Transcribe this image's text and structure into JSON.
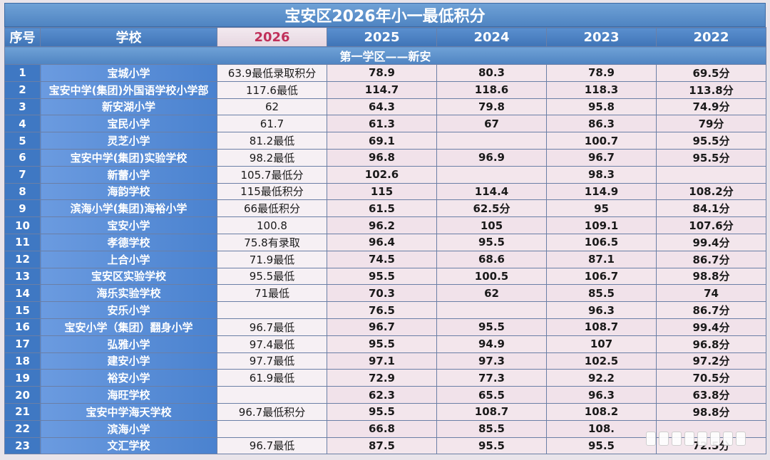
{
  "title": "宝安区2026年小一最低积分",
  "columns": [
    "序号",
    "学校",
    "2026",
    "2025",
    "2024",
    "2023",
    "2022"
  ],
  "zone": "第一学区——新安",
  "rows": [
    {
      "no": "1",
      "school": "宝城小学",
      "y2026": "63.9最低录取积分",
      "y2025": "78.9",
      "y2024": "80.3",
      "y2023": "78.9",
      "y2022": "69.5分"
    },
    {
      "no": "2",
      "school": "宝安中学(集团)外国语学校小学部",
      "y2026": "117.6最低",
      "y2025": "114.7",
      "y2024": "118.6",
      "y2023": "118.3",
      "y2022": "113.8分"
    },
    {
      "no": "3",
      "school": "新安湖小学",
      "y2026": "62",
      "y2025": "64.3",
      "y2024": "79.8",
      "y2023": "95.8",
      "y2022": "74.9分"
    },
    {
      "no": "4",
      "school": "宝民小学",
      "y2026": "61.7",
      "y2025": "61.3",
      "y2024": "67",
      "y2023": "86.3",
      "y2022": "79分"
    },
    {
      "no": "5",
      "school": "灵芝小学",
      "y2026": "81.2最低",
      "y2025": "69.1",
      "y2024": "",
      "y2023": "100.7",
      "y2022": "95.5分"
    },
    {
      "no": "6",
      "school": "宝安中学(集团)实验学校",
      "y2026": "98.2最低",
      "y2025": "96.8",
      "y2024": "96.9",
      "y2023": "96.7",
      "y2022": "95.5分"
    },
    {
      "no": "7",
      "school": "新蕾小学",
      "y2026": "105.7最低分",
      "y2025": "102.6",
      "y2024": "",
      "y2023": "98.3",
      "y2022": ""
    },
    {
      "no": "8",
      "school": "海韵学校",
      "y2026": "115最低积分",
      "y2025": "115",
      "y2024": "114.4",
      "y2023": "114.9",
      "y2022": "108.2分"
    },
    {
      "no": "9",
      "school": "滨海小学(集团)海裕小学",
      "y2026": "66最低积分",
      "y2025": "61.5",
      "y2024": "62.5分",
      "y2023": "95",
      "y2022": "84.1分"
    },
    {
      "no": "10",
      "school": "宝安小学",
      "y2026": "100.8",
      "y2025": "96.2",
      "y2024": "105",
      "y2023": "109.1",
      "y2022": "107.6分"
    },
    {
      "no": "11",
      "school": "孝德学校",
      "y2026": "75.8有录取",
      "y2025": "96.4",
      "y2024": "95.5",
      "y2023": "106.5",
      "y2022": "99.4分"
    },
    {
      "no": "12",
      "school": "上合小学",
      "y2026": "71.9最低",
      "y2025": "74.5",
      "y2024": "68.6",
      "y2023": "87.1",
      "y2022": "86.7分"
    },
    {
      "no": "13",
      "school": "宝安区实验学校",
      "y2026": "95.5最低",
      "y2025": "95.5",
      "y2024": "100.5",
      "y2023": "106.7",
      "y2022": "98.8分"
    },
    {
      "no": "14",
      "school": "海乐实验学校",
      "y2026": "71最低",
      "y2025": "70.3",
      "y2024": "62",
      "y2023": "85.5",
      "y2022": "74"
    },
    {
      "no": "15",
      "school": "安乐小学",
      "y2026": "",
      "y2025": "76.5",
      "y2024": "",
      "y2023": "96.3",
      "y2022": "86.7分"
    },
    {
      "no": "16",
      "school": "宝安小学（集团）翻身小学",
      "y2026": "96.7最低",
      "y2025": "96.7",
      "y2024": "95.5",
      "y2023": "108.7",
      "y2022": "99.4分"
    },
    {
      "no": "17",
      "school": "弘雅小学",
      "y2026": "97.4最低",
      "y2025": "95.5",
      "y2024": "94.9",
      "y2023": "107",
      "y2022": "96.8分"
    },
    {
      "no": "18",
      "school": "建安小学",
      "y2026": "97.7最低",
      "y2025": "97.1",
      "y2024": "97.3",
      "y2023": "102.5",
      "y2022": "97.2分"
    },
    {
      "no": "19",
      "school": "裕安小学",
      "y2026": "61.9最低",
      "y2025": "72.9",
      "y2024": "77.3",
      "y2023": "92.2",
      "y2022": "70.5分"
    },
    {
      "no": "20",
      "school": "海旺学校",
      "y2026": "",
      "y2025": "62.3",
      "y2024": "65.5",
      "y2023": "96.3",
      "y2022": "63.8分"
    },
    {
      "no": "21",
      "school": "宝安中学海天学校",
      "y2026": "96.7最低积分",
      "y2025": "95.5",
      "y2024": "108.7",
      "y2023": "108.2",
      "y2022": "98.8分"
    },
    {
      "no": "22",
      "school": "滨海小学",
      "y2026": "",
      "y2025": "66.8",
      "y2024": "85.5",
      "y2023": "108.",
      "y2022": ""
    },
    {
      "no": "23",
      "school": "文汇学校",
      "y2026": "96.7最低",
      "y2025": "87.5",
      "y2024": "95.5",
      "y2023": "95.5",
      "y2022": "72.5分"
    }
  ]
}
